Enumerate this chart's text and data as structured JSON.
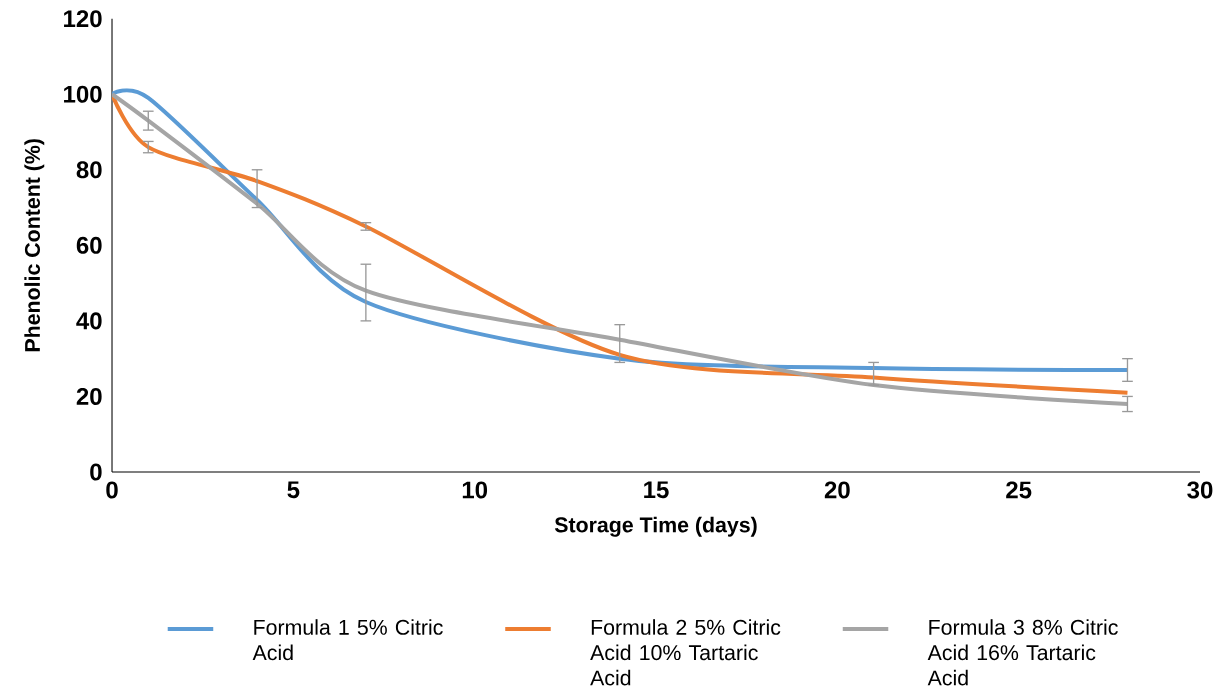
{
  "chart_data": {
    "type": "line",
    "xlabel": "Storage Time (days)",
    "ylabel": "Phenolic Content (%)",
    "x": [
      0,
      1,
      4,
      7,
      14,
      21,
      28
    ],
    "series": [
      {
        "name": "Formula 1 5% Citric Acid",
        "color": "#5b9bd5",
        "values": [
          100,
          99,
          72,
          45,
          30,
          27.5,
          27
        ],
        "errors": [
          null,
          null,
          null,
          null,
          null,
          null,
          [
            24,
            30
          ]
        ]
      },
      {
        "name": "Formula 2 5% Citric Acid 10% Tartaric Acid",
        "color": "#ed7d31",
        "values": [
          100,
          86,
          77,
          65,
          31,
          25,
          21
        ],
        "errors": [
          null,
          1.5,
          [
            70,
            80
          ],
          1,
          null,
          [
            23,
            29
          ],
          null
        ]
      },
      {
        "name": "Formula 3 8% Citric Acid 16% Tartaric Acid",
        "color": "#a5a5a5",
        "values": [
          100,
          93,
          71,
          48,
          35,
          23,
          18
        ],
        "errors": [
          null,
          2.5,
          null,
          [
            40,
            55
          ],
          [
            29,
            39
          ],
          null,
          [
            16,
            20
          ]
        ]
      }
    ],
    "xlim": [
      0,
      30
    ],
    "xticks": [
      0,
      5,
      10,
      15,
      20,
      25,
      30
    ],
    "ylim": [
      0,
      120
    ],
    "yticks": [
      0,
      20,
      40,
      60,
      80,
      100,
      120
    ],
    "grid": false,
    "legend": "bottom",
    "marker": "none",
    "line_style": "solid"
  }
}
